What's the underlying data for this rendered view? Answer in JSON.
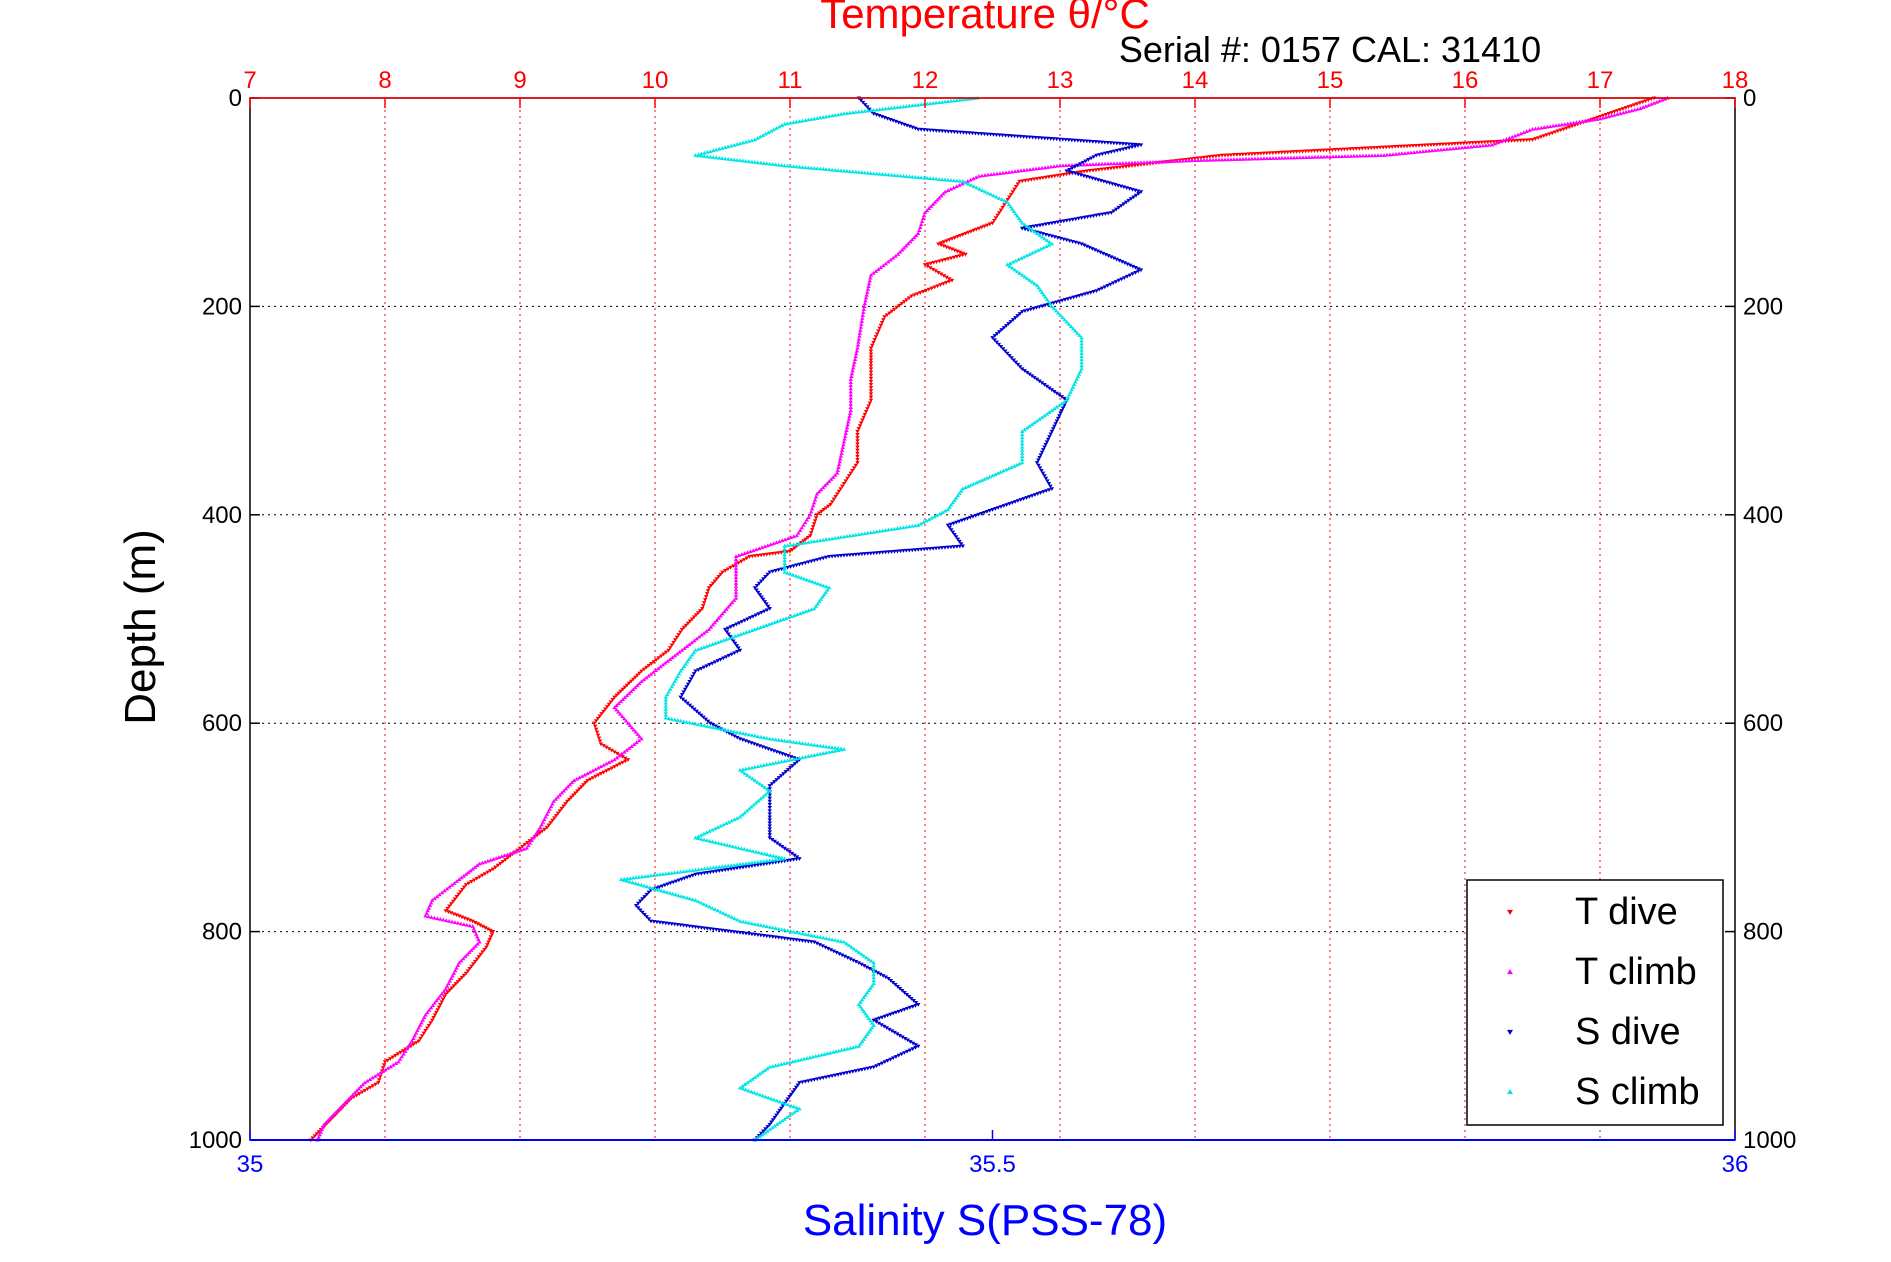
{
  "chart_data": {
    "type": "scatter",
    "title": "Temperature θ/°C",
    "subtitle": "Serial #: 0157  CAL: 31410",
    "ylabel": "Depth (m)",
    "xlabel": "Salinity S(PSS-78)",
    "ylim": [
      0,
      1000
    ],
    "y_reversed": true,
    "yticks": [
      0,
      200,
      400,
      600,
      800,
      1000
    ],
    "x_top": {
      "label": "Temperature θ/°C",
      "lim": [
        7,
        18
      ],
      "ticks": [
        7,
        8,
        9,
        10,
        11,
        12,
        13,
        14,
        15,
        16,
        17,
        18
      ]
    },
    "x_bottom": {
      "label": "Salinity S(PSS-78)",
      "lim": [
        35,
        36
      ],
      "ticks": [
        35,
        35.5,
        36
      ]
    },
    "grid": true,
    "legend_position": "bottom-right",
    "colors": {
      "t_axis": "#ff0000",
      "s_axis": "#0000ff",
      "t_dive": "#ff0000",
      "t_climb": "#ff00ff",
      "s_dive": "#0000cc",
      "s_climb": "#00e5e5"
    },
    "series": [
      {
        "name": "T dive",
        "axis": "temperature",
        "marker": "down-triangle",
        "points": [
          [
            17.4,
            0
          ],
          [
            16.5,
            40
          ],
          [
            14.2,
            55
          ],
          [
            13.2,
            70
          ],
          [
            12.7,
            80
          ],
          [
            12.6,
            100
          ],
          [
            12.5,
            120
          ],
          [
            12.3,
            130
          ],
          [
            12.1,
            140
          ],
          [
            12.3,
            150
          ],
          [
            12.0,
            160
          ],
          [
            12.2,
            175
          ],
          [
            11.9,
            190
          ],
          [
            11.7,
            210
          ],
          [
            11.6,
            240
          ],
          [
            11.6,
            260
          ],
          [
            11.6,
            290
          ],
          [
            11.5,
            320
          ],
          [
            11.5,
            350
          ],
          [
            11.4,
            370
          ],
          [
            11.3,
            390
          ],
          [
            11.2,
            400
          ],
          [
            11.15,
            420
          ],
          [
            11.0,
            435
          ],
          [
            10.7,
            440
          ],
          [
            10.5,
            455
          ],
          [
            10.4,
            470
          ],
          [
            10.35,
            490
          ],
          [
            10.2,
            510
          ],
          [
            10.1,
            530
          ],
          [
            9.9,
            550
          ],
          [
            9.7,
            575
          ],
          [
            9.55,
            600
          ],
          [
            9.6,
            620
          ],
          [
            9.8,
            635
          ],
          [
            9.5,
            655
          ],
          [
            9.35,
            675
          ],
          [
            9.2,
            700
          ],
          [
            9.0,
            720
          ],
          [
            8.8,
            740
          ],
          [
            8.6,
            755
          ],
          [
            8.45,
            780
          ],
          [
            8.65,
            790
          ],
          [
            8.8,
            800
          ],
          [
            8.75,
            815
          ],
          [
            8.6,
            840
          ],
          [
            8.45,
            860
          ],
          [
            8.35,
            885
          ],
          [
            8.25,
            905
          ],
          [
            8.0,
            925
          ],
          [
            7.95,
            945
          ],
          [
            7.75,
            960
          ],
          [
            7.6,
            980
          ],
          [
            7.45,
            1000
          ]
        ]
      },
      {
        "name": "T climb",
        "axis": "temperature",
        "marker": "up-triangle",
        "points": [
          [
            17.5,
            0
          ],
          [
            17.3,
            10
          ],
          [
            17.0,
            20
          ],
          [
            16.5,
            30
          ],
          [
            16.2,
            45
          ],
          [
            15.4,
            55
          ],
          [
            14.0,
            60
          ],
          [
            13.0,
            65
          ],
          [
            12.4,
            75
          ],
          [
            12.15,
            90
          ],
          [
            12.0,
            110
          ],
          [
            11.95,
            130
          ],
          [
            11.8,
            150
          ],
          [
            11.6,
            170
          ],
          [
            11.55,
            200
          ],
          [
            11.5,
            240
          ],
          [
            11.45,
            270
          ],
          [
            11.45,
            300
          ],
          [
            11.4,
            330
          ],
          [
            11.35,
            360
          ],
          [
            11.2,
            380
          ],
          [
            11.15,
            400
          ],
          [
            11.05,
            420
          ],
          [
            10.6,
            440
          ],
          [
            10.6,
            460
          ],
          [
            10.6,
            480
          ],
          [
            10.4,
            510
          ],
          [
            10.2,
            530
          ],
          [
            9.9,
            560
          ],
          [
            9.7,
            585
          ],
          [
            9.9,
            615
          ],
          [
            9.7,
            635
          ],
          [
            9.4,
            655
          ],
          [
            9.25,
            675
          ],
          [
            9.15,
            700
          ],
          [
            9.05,
            720
          ],
          [
            8.7,
            735
          ],
          [
            8.55,
            750
          ],
          [
            8.35,
            770
          ],
          [
            8.3,
            785
          ],
          [
            8.65,
            795
          ],
          [
            8.7,
            810
          ],
          [
            8.55,
            830
          ],
          [
            8.45,
            855
          ],
          [
            8.3,
            880
          ],
          [
            8.2,
            905
          ],
          [
            8.1,
            925
          ],
          [
            7.85,
            945
          ],
          [
            7.7,
            965
          ],
          [
            7.55,
            985
          ],
          [
            7.5,
            1000
          ]
        ]
      },
      {
        "name": "S dive",
        "axis": "salinity",
        "marker": "down-triangle",
        "points": [
          [
            35.41,
            0
          ],
          [
            35.42,
            15
          ],
          [
            35.45,
            30
          ],
          [
            35.6,
            45
          ],
          [
            35.57,
            55
          ],
          [
            35.55,
            70
          ],
          [
            35.6,
            90
          ],
          [
            35.58,
            110
          ],
          [
            35.52,
            125
          ],
          [
            35.56,
            140
          ],
          [
            35.6,
            165
          ],
          [
            35.57,
            185
          ],
          [
            35.52,
            205
          ],
          [
            35.5,
            230
          ],
          [
            35.52,
            260
          ],
          [
            35.55,
            290
          ],
          [
            35.54,
            320
          ],
          [
            35.53,
            350
          ],
          [
            35.54,
            375
          ],
          [
            35.5,
            395
          ],
          [
            35.47,
            410
          ],
          [
            35.48,
            430
          ],
          [
            35.39,
            440
          ],
          [
            35.35,
            455
          ],
          [
            35.34,
            470
          ],
          [
            35.35,
            490
          ],
          [
            35.32,
            510
          ],
          [
            35.33,
            530
          ],
          [
            35.3,
            550
          ],
          [
            35.29,
            575
          ],
          [
            35.31,
            600
          ],
          [
            35.33,
            615
          ],
          [
            35.37,
            635
          ],
          [
            35.35,
            660
          ],
          [
            35.35,
            690
          ],
          [
            35.35,
            710
          ],
          [
            35.37,
            730
          ],
          [
            35.3,
            745
          ],
          [
            35.27,
            760
          ],
          [
            35.26,
            775
          ],
          [
            35.27,
            790
          ],
          [
            35.38,
            810
          ],
          [
            35.41,
            830
          ],
          [
            35.43,
            845
          ],
          [
            35.45,
            870
          ],
          [
            35.42,
            885
          ],
          [
            35.45,
            910
          ],
          [
            35.42,
            930
          ],
          [
            35.37,
            945
          ],
          [
            35.36,
            965
          ],
          [
            35.35,
            985
          ],
          [
            35.34,
            1000
          ]
        ]
      },
      {
        "name": "S climb",
        "axis": "salinity",
        "marker": "up-triangle",
        "points": [
          [
            35.49,
            0
          ],
          [
            35.4,
            15
          ],
          [
            35.36,
            25
          ],
          [
            35.34,
            40
          ],
          [
            35.3,
            55
          ],
          [
            35.36,
            65
          ],
          [
            35.48,
            80
          ],
          [
            35.51,
            100
          ],
          [
            35.52,
            120
          ],
          [
            35.54,
            140
          ],
          [
            35.51,
            160
          ],
          [
            35.53,
            180
          ],
          [
            35.54,
            200
          ],
          [
            35.56,
            230
          ],
          [
            35.56,
            260
          ],
          [
            35.55,
            290
          ],
          [
            35.52,
            320
          ],
          [
            35.52,
            350
          ],
          [
            35.48,
            375
          ],
          [
            35.47,
            395
          ],
          [
            35.45,
            410
          ],
          [
            35.36,
            430
          ],
          [
            35.36,
            455
          ],
          [
            35.39,
            470
          ],
          [
            35.38,
            490
          ],
          [
            35.34,
            510
          ],
          [
            35.3,
            530
          ],
          [
            35.29,
            550
          ],
          [
            35.28,
            575
          ],
          [
            35.28,
            595
          ],
          [
            35.35,
            615
          ],
          [
            35.4,
            625
          ],
          [
            35.33,
            645
          ],
          [
            35.35,
            665
          ],
          [
            35.33,
            690
          ],
          [
            35.3,
            710
          ],
          [
            35.36,
            730
          ],
          [
            35.25,
            750
          ],
          [
            35.3,
            770
          ],
          [
            35.33,
            790
          ],
          [
            35.4,
            810
          ],
          [
            35.42,
            830
          ],
          [
            35.42,
            850
          ],
          [
            35.41,
            870
          ],
          [
            35.42,
            890
          ],
          [
            35.41,
            910
          ],
          [
            35.35,
            930
          ],
          [
            35.33,
            950
          ],
          [
            35.37,
            970
          ],
          [
            35.34,
            1000
          ]
        ]
      }
    ]
  }
}
